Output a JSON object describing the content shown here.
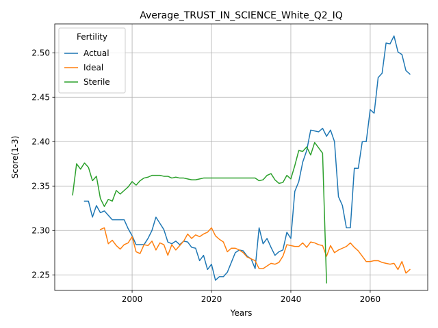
{
  "chart_data": {
    "type": "line",
    "title": "Average_TRUST_IN_SCIENCE_White_Q2_IQ",
    "xlabel": "Years",
    "ylabel": "Score(1-3)",
    "xlim": [
      1980.5,
      2074.5
    ],
    "ylim": [
      2.2325,
      2.5325
    ],
    "xticks": [
      2000,
      2020,
      2040,
      2060
    ],
    "yticks": [
      2.25,
      2.3,
      2.35,
      2.4,
      2.45,
      2.5
    ],
    "xtick_labels": [
      "2000",
      "2020",
      "2040",
      "2060"
    ],
    "ytick_labels": [
      "2.25",
      "2.30",
      "2.35",
      "2.40",
      "2.45",
      "2.50"
    ],
    "grid": true,
    "legend": {
      "title": "Fertility",
      "placement": "top-left"
    },
    "series": [
      {
        "name": "Actual",
        "color": "#1f77b4",
        "x": [
          1988,
          1989,
          1990,
          1991,
          1992,
          1993,
          1994,
          1995,
          1996,
          1997,
          1998,
          1999,
          2000,
          2001,
          2002,
          2003,
          2004,
          2005,
          2006,
          2007,
          2008,
          2009,
          2010,
          2011,
          2012,
          2013,
          2014,
          2015,
          2016,
          2017,
          2018,
          2019,
          2020,
          2021,
          2022,
          2023,
          2024,
          2025,
          2026,
          2027,
          2028,
          2029,
          2030,
          2031,
          2032,
          2033,
          2034,
          2035,
          2036,
          2037,
          2038,
          2039,
          2040,
          2041,
          2042,
          2043,
          2044,
          2045,
          2046,
          2047,
          2048,
          2049,
          2050,
          2051,
          2052,
          2053,
          2054,
          2055,
          2056,
          2057,
          2058,
          2059,
          2060,
          2061,
          2062,
          2063,
          2064,
          2065,
          2066,
          2067,
          2068,
          2069,
          2070
        ],
        "y": [
          2.333,
          2.333,
          2.315,
          2.328,
          2.32,
          2.322,
          2.317,
          2.312,
          2.312,
          2.312,
          2.312,
          2.302,
          2.294,
          2.284,
          2.284,
          2.284,
          2.291,
          2.3,
          2.315,
          2.308,
          2.301,
          2.287,
          2.285,
          2.288,
          2.284,
          2.288,
          2.287,
          2.281,
          2.28,
          2.266,
          2.272,
          2.256,
          2.262,
          2.244,
          2.248,
          2.248,
          2.253,
          2.264,
          2.275,
          2.278,
          2.277,
          2.271,
          2.268,
          2.257,
          2.303,
          2.285,
          2.291,
          2.281,
          2.272,
          2.276,
          2.278,
          2.298,
          2.291,
          2.344,
          2.355,
          2.377,
          2.39,
          2.413,
          2.412,
          2.411,
          2.415,
          2.406,
          2.413,
          2.4,
          2.338,
          2.328,
          2.303,
          2.303,
          2.37,
          2.37,
          2.4,
          2.4,
          2.436,
          2.432,
          2.472,
          2.477,
          2.511,
          2.51,
          2.519,
          2.501,
          2.498,
          2.48,
          2.476
        ]
      },
      {
        "name": "Ideal",
        "color": "#ff7f0e",
        "x": [
          1992,
          1993,
          1994,
          1995,
          1996,
          1997,
          1998,
          1999,
          2000,
          2001,
          2002,
          2003,
          2004,
          2005,
          2006,
          2007,
          2008,
          2009,
          2010,
          2011,
          2012,
          2013,
          2014,
          2015,
          2016,
          2017,
          2018,
          2019,
          2020,
          2021,
          2022,
          2023,
          2024,
          2025,
          2026,
          2027,
          2028,
          2029,
          2030,
          2031,
          2032,
          2033,
          2034,
          2035,
          2036,
          2037,
          2038,
          2039,
          2040,
          2041,
          2042,
          2043,
          2044,
          2045,
          2046,
          2047,
          2048,
          2049,
          2050,
          2051,
          2052,
          2053,
          2054,
          2055,
          2056,
          2057,
          2058,
          2059,
          2060,
          2061,
          2062,
          2063,
          2064,
          2065,
          2066,
          2067,
          2068,
          2069,
          2070
        ],
        "y": [
          2.301,
          2.303,
          2.285,
          2.289,
          2.283,
          2.279,
          2.284,
          2.286,
          2.293,
          2.276,
          2.274,
          2.284,
          2.283,
          2.288,
          2.278,
          2.286,
          2.284,
          2.272,
          2.284,
          2.278,
          2.283,
          2.288,
          2.296,
          2.291,
          2.295,
          2.293,
          2.296,
          2.298,
          2.303,
          2.294,
          2.29,
          2.287,
          2.276,
          2.28,
          2.28,
          2.278,
          2.275,
          2.27,
          2.268,
          2.266,
          2.257,
          2.257,
          2.26,
          2.263,
          2.262,
          2.264,
          2.271,
          2.284,
          2.283,
          2.282,
          2.282,
          2.286,
          2.281,
          2.287,
          2.286,
          2.284,
          2.283,
          2.271,
          2.283,
          2.275,
          2.278,
          2.28,
          2.282,
          2.286,
          2.281,
          2.277,
          2.271,
          2.265,
          2.265,
          2.266,
          2.266,
          2.264,
          2.263,
          2.262,
          2.263,
          2.256,
          2.265,
          2.252,
          2.256
        ]
      },
      {
        "name": "Sterile",
        "color": "#2ca02c",
        "x": [
          1985,
          1986,
          1987,
          1988,
          1989,
          1990,
          1991,
          1992,
          1993,
          1994,
          1995,
          1996,
          1997,
          1998,
          1999,
          2000,
          2001,
          2002,
          2003,
          2004,
          2005,
          2006,
          2007,
          2008,
          2009,
          2010,
          2011,
          2012,
          2013,
          2014,
          2015,
          2016,
          2017,
          2018,
          2019,
          2020,
          2021,
          2022,
          2023,
          2024,
          2025,
          2026,
          2027,
          2028,
          2029,
          2030,
          2031,
          2032,
          2033,
          2034,
          2035,
          2036,
          2037,
          2038,
          2039,
          2040,
          2041,
          2042,
          2043,
          2044,
          2045,
          2046,
          2047,
          2048,
          2049
        ],
        "y": [
          2.34,
          2.375,
          2.369,
          2.376,
          2.371,
          2.356,
          2.361,
          2.336,
          2.327,
          2.335,
          2.333,
          2.345,
          2.341,
          2.345,
          2.349,
          2.355,
          2.351,
          2.356,
          2.359,
          2.36,
          2.362,
          2.362,
          2.362,
          2.361,
          2.361,
          2.359,
          2.36,
          2.359,
          2.359,
          2.358,
          2.357,
          2.357,
          2.358,
          2.359,
          2.359,
          2.359,
          2.359,
          2.359,
          2.359,
          2.359,
          2.359,
          2.359,
          2.359,
          2.359,
          2.359,
          2.359,
          2.359,
          2.356,
          2.357,
          2.362,
          2.364,
          2.357,
          2.353,
          2.354,
          2.362,
          2.358,
          2.373,
          2.39,
          2.389,
          2.394,
          2.385,
          2.399,
          2.393,
          2.387,
          2.241
        ]
      }
    ]
  }
}
